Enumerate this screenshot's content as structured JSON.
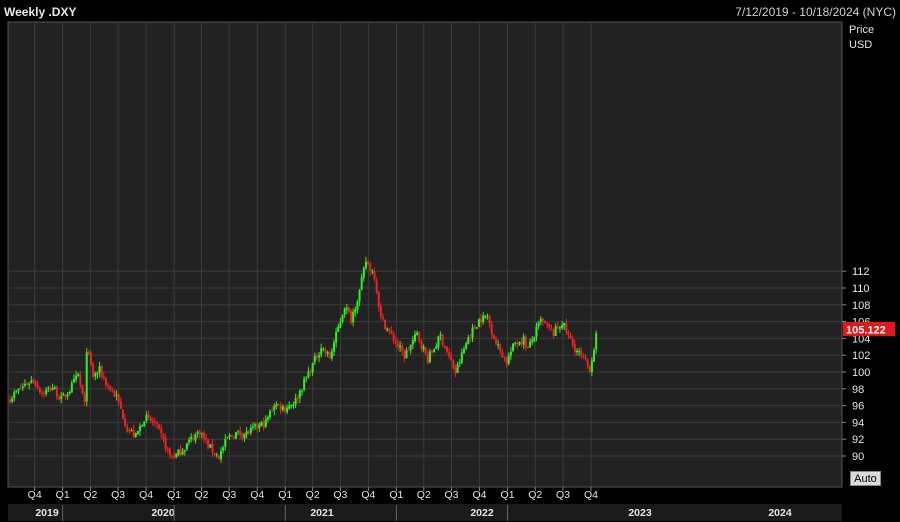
{
  "header": {
    "title": "Weekly .DXY",
    "date_range": "7/12/2019 - 10/18/2024 (NYC)"
  },
  "axis": {
    "price_label": "Price",
    "unit_label": "USD",
    "auto_button": "Auto",
    "last_price_label": "105.122"
  },
  "colors": {
    "background": "#000000",
    "plot_background": "#222222",
    "grid": "#3c3c3c",
    "up": "#33ee22",
    "down": "#ee2222",
    "last_price_tag": "#e01818"
  },
  "chart_data": {
    "type": "candlestick",
    "title": "Weekly .DXY",
    "timeframe": "Weekly",
    "x_start": "2019-07-12",
    "x_end": "2024-10-18",
    "ylabel": "Price",
    "unit": "USD",
    "ylim": [
      89,
      116
    ],
    "y_ticks": [
      90,
      92,
      94,
      96,
      98,
      100,
      102,
      104,
      106,
      108,
      110,
      112
    ],
    "last_price": 105.122,
    "grid": true,
    "quarter_ticks": [
      "Q4",
      "Q1",
      "Q2",
      "Q3",
      "Q4",
      "Q1",
      "Q2",
      "Q3",
      "Q4",
      "Q1",
      "Q2",
      "Q3",
      "Q4",
      "Q1",
      "Q2",
      "Q3",
      "Q4",
      "Q1",
      "Q2",
      "Q3",
      "Q4"
    ],
    "year_labels": [
      "2019",
      "2020",
      "2021",
      "2022",
      "2023",
      "2024"
    ],
    "price_path": [
      [
        "2019-07-12",
        96.9
      ],
      [
        "2019-08-30",
        98.5
      ],
      [
        "2019-09-27",
        99.1
      ],
      [
        "2019-10-25",
        97.5
      ],
      [
        "2019-11-29",
        98.2
      ],
      [
        "2019-12-27",
        96.7
      ],
      [
        "2020-01-24",
        97.9
      ],
      [
        "2020-02-21",
        99.6
      ],
      [
        "2020-03-13",
        96.0
      ],
      [
        "2020-03-20",
        102.8
      ],
      [
        "2020-04-10",
        99.5
      ],
      [
        "2020-05-01",
        100.2
      ],
      [
        "2020-05-29",
        98.3
      ],
      [
        "2020-06-26",
        97.0
      ],
      [
        "2020-07-31",
        93.3
      ],
      [
        "2020-08-28",
        92.3
      ],
      [
        "2020-09-25",
        94.6
      ],
      [
        "2020-10-30",
        93.8
      ],
      [
        "2020-11-27",
        91.8
      ],
      [
        "2020-12-18",
        90.0
      ],
      [
        "2021-01-08",
        90.1
      ],
      [
        "2021-01-29",
        90.8
      ],
      [
        "2021-03-05",
        92.3
      ],
      [
        "2021-03-26",
        93.0
      ],
      [
        "2021-04-23",
        91.2
      ],
      [
        "2021-05-28",
        89.9
      ],
      [
        "2021-06-25",
        92.1
      ],
      [
        "2021-07-23",
        92.7
      ],
      [
        "2021-08-27",
        92.7
      ],
      [
        "2021-09-24",
        93.3
      ],
      [
        "2021-10-29",
        94.0
      ],
      [
        "2021-11-26",
        96.2
      ],
      [
        "2021-12-31",
        95.7
      ],
      [
        "2022-02-04",
        96.6
      ],
      [
        "2022-03-04",
        98.8
      ],
      [
        "2022-04-29",
        103.0
      ],
      [
        "2022-05-27",
        101.7
      ],
      [
        "2022-07-15",
        107.9
      ],
      [
        "2022-08-05",
        106.3
      ],
      [
        "2022-09-02",
        109.6
      ],
      [
        "2022-09-23",
        113.2
      ],
      [
        "2022-10-21",
        111.5
      ],
      [
        "2022-11-11",
        106.4
      ],
      [
        "2022-12-30",
        103.5
      ],
      [
        "2023-01-27",
        101.9
      ],
      [
        "2023-03-10",
        104.5
      ],
      [
        "2023-04-14",
        101.5
      ],
      [
        "2023-05-26",
        104.3
      ],
      [
        "2023-07-14",
        99.9
      ],
      [
        "2023-08-25",
        104.1
      ],
      [
        "2023-09-29",
        106.2
      ],
      [
        "2023-10-27",
        106.6
      ],
      [
        "2023-11-24",
        103.4
      ],
      [
        "2023-12-29",
        101.3
      ],
      [
        "2024-01-26",
        103.5
      ],
      [
        "2024-02-23",
        103.9
      ],
      [
        "2024-03-08",
        102.7
      ],
      [
        "2024-04-19",
        106.1
      ],
      [
        "2024-05-31",
        104.6
      ],
      [
        "2024-06-28",
        105.9
      ],
      [
        "2024-08-02",
        103.2
      ],
      [
        "2024-09-27",
        100.4
      ],
      [
        "2024-10-18",
        104.2
      ]
    ]
  }
}
